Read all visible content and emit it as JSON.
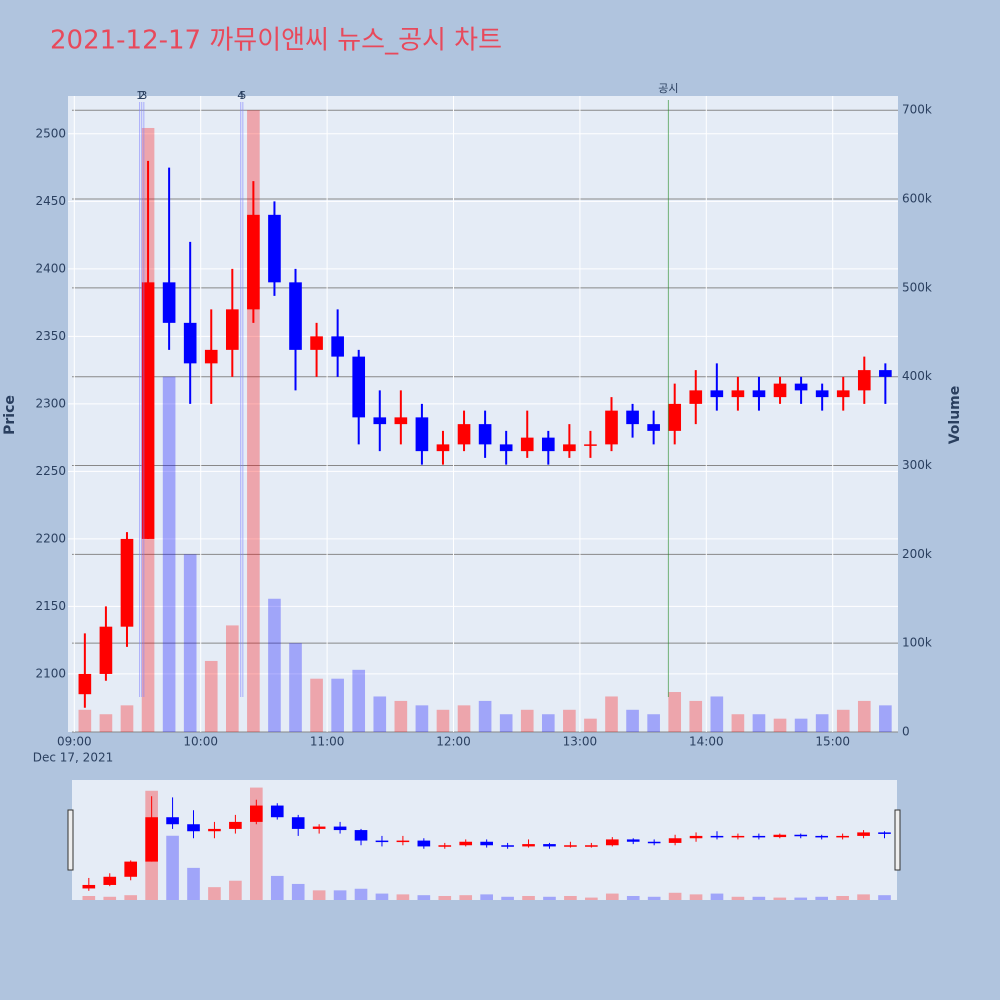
{
  "chart_data": {
    "type": "candlestick",
    "title": "2021-12-17 까뮤이앤씨 뉴스_공시 차트",
    "y_label": "Price",
    "y2_label": "Volume",
    "x_date_label": "Dec 17, 2021",
    "increasing_color": "#ff0000",
    "decreasing_color": "#0000ff",
    "x": [
      "09:00",
      "09:10",
      "09:20",
      "09:30",
      "09:40",
      "09:50",
      "10:00",
      "10:10",
      "10:20",
      "10:30",
      "10:40",
      "10:50",
      "11:00",
      "11:10",
      "11:20",
      "11:30",
      "11:40",
      "11:50",
      "12:00",
      "12:10",
      "12:20",
      "12:30",
      "12:40",
      "12:50",
      "13:00",
      "13:10",
      "13:20",
      "13:30",
      "13:40",
      "13:50",
      "14:00",
      "14:10",
      "14:20",
      "14:30",
      "14:40",
      "14:50",
      "15:00",
      "15:10",
      "15:20"
    ],
    "open": [
      2085,
      2100,
      2135,
      2200,
      2390,
      2360,
      2330,
      2340,
      2370,
      2440,
      2390,
      2340,
      2350,
      2335,
      2290,
      2285,
      2290,
      2265,
      2270,
      2285,
      2270,
      2265,
      2275,
      2265,
      2270,
      2270,
      2295,
      2285,
      2280,
      2300,
      2310,
      2305,
      2310,
      2305,
      2315,
      2310,
      2305,
      2310,
      2325
    ],
    "high": [
      2130,
      2150,
      2205,
      2480,
      2475,
      2420,
      2370,
      2400,
      2465,
      2450,
      2400,
      2360,
      2370,
      2340,
      2310,
      2310,
      2300,
      2280,
      2295,
      2295,
      2280,
      2295,
      2280,
      2285,
      2280,
      2305,
      2300,
      2295,
      2315,
      2325,
      2330,
      2320,
      2320,
      2320,
      2320,
      2315,
      2320,
      2335,
      2330
    ],
    "low": [
      2075,
      2095,
      2120,
      2200,
      2340,
      2300,
      2300,
      2320,
      2360,
      2380,
      2310,
      2320,
      2320,
      2270,
      2265,
      2270,
      2255,
      2255,
      2265,
      2260,
      2255,
      2260,
      2255,
      2260,
      2260,
      2265,
      2275,
      2270,
      2270,
      2285,
      2295,
      2295,
      2295,
      2300,
      2300,
      2295,
      2295,
      2300,
      2300
    ],
    "close": [
      2100,
      2135,
      2200,
      2390,
      2360,
      2330,
      2340,
      2370,
      2440,
      2390,
      2340,
      2350,
      2335,
      2290,
      2285,
      2290,
      2265,
      2270,
      2285,
      2270,
      2265,
      2275,
      2265,
      2270,
      2270,
      2295,
      2285,
      2280,
      2300,
      2310,
      2305,
      2310,
      2305,
      2315,
      2310,
      2305,
      2310,
      2325,
      2320
    ],
    "volume": [
      25000,
      20000,
      30000,
      680000,
      400000,
      200000,
      80000,
      120000,
      700000,
      150000,
      100000,
      60000,
      60000,
      70000,
      40000,
      35000,
      30000,
      25000,
      30000,
      35000,
      20000,
      25000,
      20000,
      25000,
      15000,
      40000,
      25000,
      20000,
      45000,
      35000,
      40000,
      20000,
      20000,
      15000,
      15000,
      20000,
      25000,
      35000,
      30000
    ],
    "xlim": [
      "08:57",
      "15:31"
    ],
    "xticks": [
      "09:00",
      "10:00",
      "11:00",
      "12:00",
      "13:00",
      "14:00",
      "15:00"
    ],
    "ylim": [
      2057,
      2528
    ],
    "yticks": [
      2100,
      2150,
      2200,
      2250,
      2300,
      2350,
      2400,
      2450,
      2500
    ],
    "y2lim": [
      0,
      716000
    ],
    "y2ticks": [
      {
        "value": 0,
        "label": "0"
      },
      {
        "value": 100000,
        "label": "100k"
      },
      {
        "value": 200000,
        "label": "200k"
      },
      {
        "value": 300000,
        "label": "300k"
      },
      {
        "value": 400000,
        "label": "400k"
      },
      {
        "value": 500000,
        "label": "500k"
      },
      {
        "value": 600000,
        "label": "600k"
      },
      {
        "value": 700000,
        "label": "700k"
      }
    ],
    "annotations": [
      {
        "text": "1",
        "x": "09:31"
      },
      {
        "text": "2",
        "x": "09:32"
      },
      {
        "text": "3",
        "x": "09:33"
      },
      {
        "text": "4",
        "x": "10:19"
      },
      {
        "text": "5",
        "x": "10:20"
      },
      {
        "text": "공시",
        "x": "13:42"
      }
    ]
  }
}
